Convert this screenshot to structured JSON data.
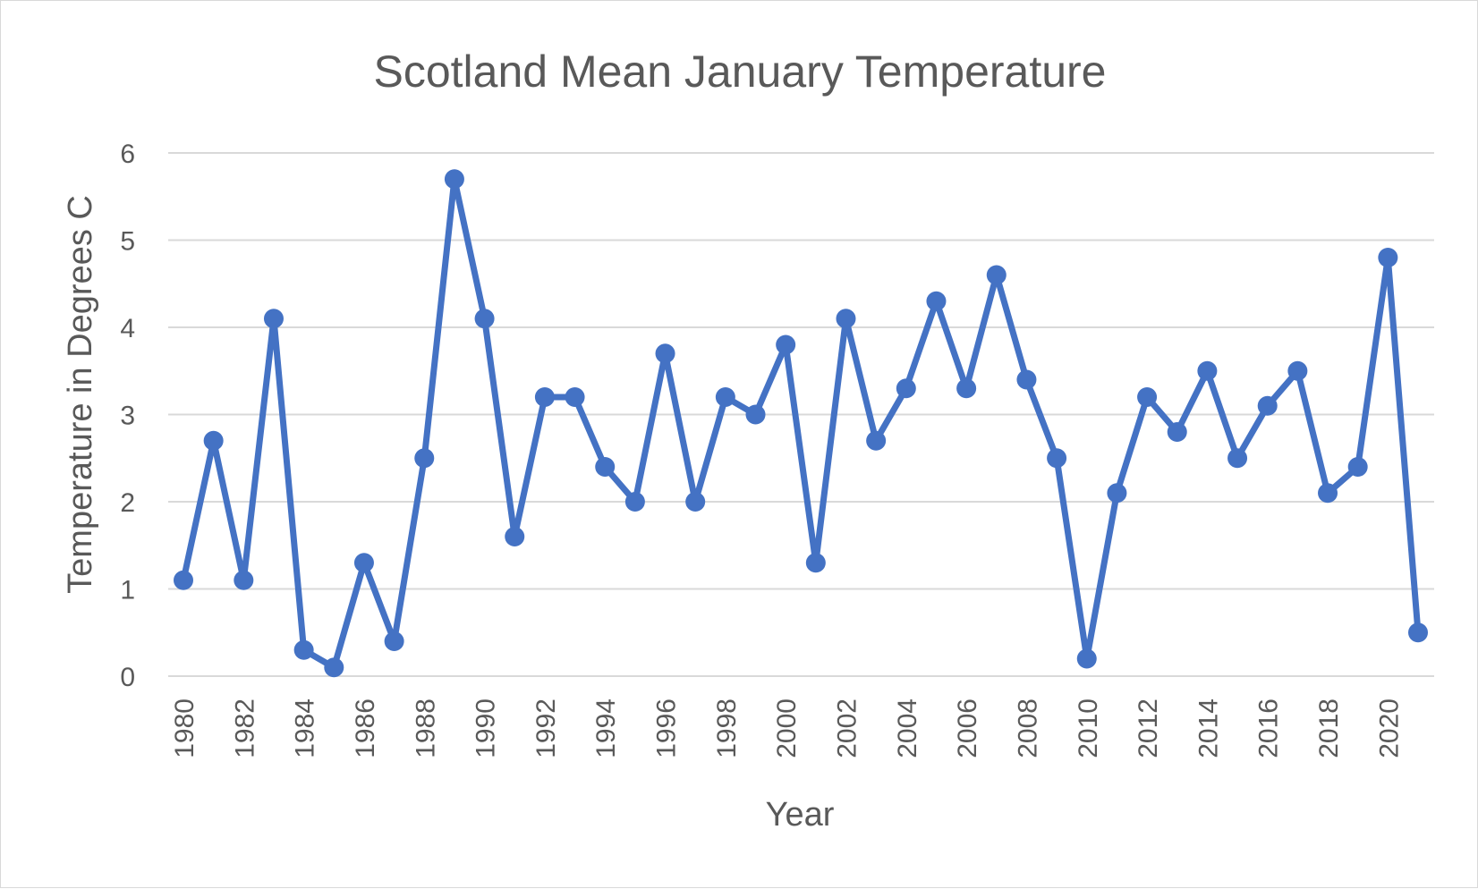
{
  "chart_data": {
    "type": "line",
    "title": "Scotland Mean January Temperature",
    "xlabel": "Year",
    "ylabel": "Temperature in Degrees C",
    "ylim": [
      0,
      6
    ],
    "yticks": [
      "0",
      "1",
      "2",
      "3",
      "4",
      "5",
      "6"
    ],
    "grid": true,
    "legend": "none",
    "color": "#4472c4",
    "x": [
      1980,
      1981,
      1982,
      1983,
      1984,
      1985,
      1986,
      1987,
      1988,
      1989,
      1990,
      1991,
      1992,
      1993,
      1994,
      1995,
      1996,
      1997,
      1998,
      1999,
      2000,
      2001,
      2002,
      2003,
      2004,
      2005,
      2006,
      2007,
      2008,
      2009,
      2010,
      2011,
      2012,
      2013,
      2014,
      2015,
      2016,
      2017,
      2018,
      2019,
      2020,
      2021
    ],
    "xtick_labels": [
      "1980",
      "1982",
      "1984",
      "1986",
      "1988",
      "1990",
      "1992",
      "1994",
      "1996",
      "1998",
      "2000",
      "2002",
      "2004",
      "2006",
      "2008",
      "2010",
      "2012",
      "2014",
      "2016",
      "2018",
      "2020"
    ],
    "series": [
      {
        "values": [
          1.1,
          2.7,
          1.1,
          4.1,
          0.3,
          0.1,
          1.3,
          0.4,
          2.5,
          5.7,
          4.1,
          1.6,
          3.2,
          3.2,
          2.4,
          2.0,
          3.7,
          2.0,
          3.2,
          3.0,
          3.8,
          1.3,
          4.1,
          2.7,
          3.3,
          4.3,
          3.3,
          4.6,
          3.4,
          2.5,
          0.2,
          2.1,
          3.2,
          2.8,
          3.5,
          2.5,
          3.1,
          3.5,
          2.1,
          2.4,
          4.8,
          0.5
        ]
      }
    ]
  }
}
